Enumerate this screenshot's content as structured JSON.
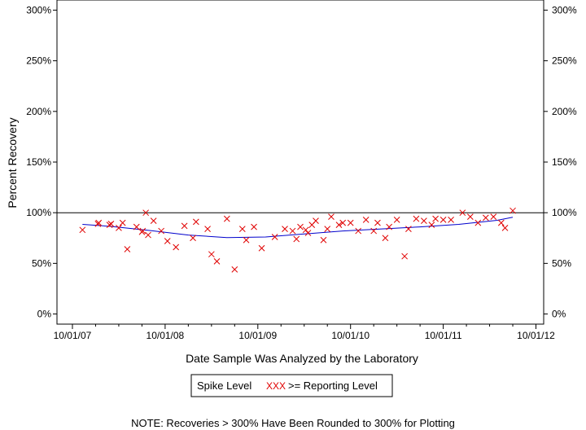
{
  "chart_data": {
    "type": "scatter",
    "title": "",
    "xlabel": "Date Sample Was Analyzed by the Laboratory",
    "ylabel": "Percent Recovery",
    "x_tick_labels": [
      "10/01/07",
      "10/01/08",
      "10/01/09",
      "10/01/10",
      "10/01/11",
      "10/01/12"
    ],
    "x_range_months": [
      -2,
      61
    ],
    "y_tick_labels": [
      "0%",
      "50%",
      "100%",
      "150%",
      "200%",
      "250%",
      "300%"
    ],
    "y_ticks": [
      0,
      50,
      100,
      150,
      200,
      250,
      300
    ],
    "ylim": [
      -10,
      310
    ],
    "reference_line": 100,
    "legend": {
      "labels": [
        "Spike Level",
        ">= Reporting Level"
      ],
      "marker_text": "XXX",
      "position": "bottom-center"
    },
    "note": "NOTE: Recoveries > 300% Have Been Rounded to 300% for Plotting",
    "series": [
      {
        "name": ">= Reporting Level",
        "marker": "x",
        "color": "#e00000",
        "x": [
          1.3,
          3.3,
          3.4,
          4.8,
          5.0,
          6.0,
          6.5,
          7.1,
          8.3,
          9.0,
          9.1,
          9.5,
          9.8,
          10.5,
          11.5,
          12.3,
          13.4,
          14.5,
          15.6,
          16.0,
          17.5,
          18.0,
          18.7,
          20.0,
          21.0,
          22.0,
          22.5,
          23.5,
          24.5,
          26.2,
          27.5,
          28.5,
          29.0,
          29.5,
          30.2,
          30.5,
          31.0,
          31.5,
          32.5,
          33.0,
          33.5,
          34.5,
          35.0,
          36.0,
          37.0,
          38.0,
          39.0,
          39.5,
          40.5,
          41.0,
          42.0,
          43.0,
          43.5,
          44.5,
          45.5,
          46.5,
          47.0,
          48.0,
          49.0,
          50.5,
          51.5,
          52.5,
          53.5,
          54.5,
          55.5,
          56.0,
          57.0
        ],
        "y": [
          83,
          89,
          90,
          88,
          89,
          85,
          90,
          64,
          86,
          81,
          82,
          100,
          78,
          92,
          82,
          72,
          66,
          87,
          75,
          91,
          84,
          59,
          52,
          94,
          44,
          84,
          73,
          86,
          65,
          76,
          84,
          82,
          74,
          86,
          83,
          80,
          88,
          92,
          73,
          84,
          96,
          88,
          90,
          90,
          82,
          93,
          82,
          90,
          75,
          86,
          93,
          57,
          84,
          94,
          92,
          88,
          94,
          93,
          93,
          100,
          96,
          90,
          95,
          96,
          90,
          85,
          102
        ]
      },
      {
        "name": "Trend",
        "type": "line",
        "color": "#0000cc",
        "x": [
          1.3,
          5,
          10,
          15,
          20,
          25,
          30,
          35,
          40,
          45,
          50,
          55,
          57
        ],
        "y": [
          88.5,
          86.5,
          82.5,
          78,
          75.5,
          76,
          79,
          82,
          84,
          86,
          88.5,
          92.5,
          95.5
        ]
      }
    ]
  }
}
